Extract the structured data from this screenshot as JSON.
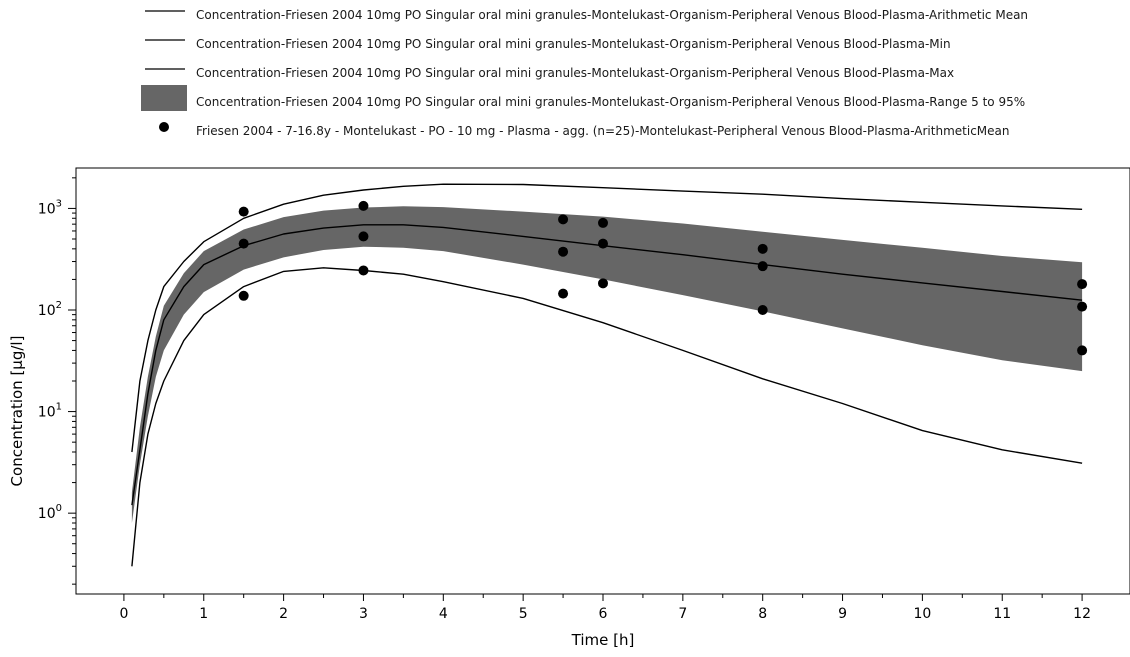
{
  "legend": [
    {
      "kind": "line",
      "label": "Concentration-Friesen 2004 10mg PO Singular oral mini granules-Montelukast-Organism-Peripheral Venous Blood-Plasma-Arithmetic Mean"
    },
    {
      "kind": "line",
      "label": "Concentration-Friesen 2004 10mg PO Singular oral mini granules-Montelukast-Organism-Peripheral Venous Blood-Plasma-Min"
    },
    {
      "kind": "line",
      "label": "Concentration-Friesen 2004 10mg PO Singular oral mini granules-Montelukast-Organism-Peripheral Venous Blood-Plasma-Max"
    },
    {
      "kind": "band",
      "label": "Concentration-Friesen 2004 10mg PO Singular oral mini granules-Montelukast-Organism-Peripheral Venous Blood-Plasma-Range 5 to 95%"
    },
    {
      "kind": "marker",
      "label": "Friesen 2004 - 7-16.8y - Montelukast - PO - 10 mg - Plasma - agg. (n=25)-Montelukast-Peripheral Venous Blood-Plasma-ArithmeticMean"
    }
  ],
  "chart_data": {
    "type": "line",
    "xlabel": "Time [h]",
    "ylabel": "Concentration [µg/l]",
    "xlim": [
      -0.6,
      12.6
    ],
    "ylim": [
      0.16,
      2500
    ],
    "yscale": "log",
    "xticks": [
      0,
      1,
      2,
      3,
      4,
      5,
      6,
      7,
      8,
      9,
      10,
      11,
      12
    ],
    "ytick_labels": [
      {
        "base": "10",
        "exp": "0",
        "value": 1
      },
      {
        "base": "10",
        "exp": "1",
        "value": 10
      },
      {
        "base": "10",
        "exp": "2",
        "value": 100
      },
      {
        "base": "10",
        "exp": "3",
        "value": 1000
      }
    ],
    "colors": {
      "lines": "#000000",
      "band": "#666666",
      "markers": "#000000"
    },
    "series": [
      {
        "name": "Concentration-Friesen 2004 10mg PO Singular oral mini granules-Montelukast-Organism-Peripheral Venous Blood-Plasma-Arithmetic Mean",
        "kind": "line",
        "x": [
          0.1,
          0.2,
          0.3,
          0.4,
          0.5,
          0.75,
          1,
          1.5,
          2,
          2.5,
          3,
          3.5,
          4,
          5,
          6,
          7,
          8,
          9,
          10,
          11,
          12
        ],
        "y": [
          1.2,
          4.2,
          15,
          40,
          80,
          170,
          280,
          430,
          560,
          640,
          690,
          690,
          650,
          530,
          430,
          350,
          280,
          225,
          185,
          152,
          125
        ]
      },
      {
        "name": "Concentration-Friesen 2004 10mg PO Singular oral mini granules-Montelukast-Organism-Peripheral Venous Blood-Plasma-Min",
        "kind": "line",
        "x": [
          0.1,
          0.2,
          0.3,
          0.4,
          0.5,
          0.75,
          1,
          1.5,
          2,
          2.5,
          3,
          3.5,
          4,
          5,
          6,
          7,
          8,
          9,
          10,
          11,
          12
        ],
        "y": [
          0.3,
          2.0,
          6,
          12,
          20,
          50,
          90,
          170,
          240,
          260,
          245,
          225,
          190,
          130,
          75,
          40,
          21,
          12,
          6.5,
          4.2,
          3.1
        ]
      },
      {
        "name": "Concentration-Friesen 2004 10mg PO Singular oral mini granules-Montelukast-Organism-Peripheral Venous Blood-Plasma-Max",
        "kind": "line",
        "x": [
          0.1,
          0.2,
          0.3,
          0.4,
          0.5,
          0.75,
          1,
          1.5,
          2,
          2.5,
          3,
          3.5,
          4,
          5,
          6,
          7,
          8,
          9,
          10,
          11,
          12
        ],
        "y": [
          4,
          20,
          50,
          100,
          170,
          300,
          470,
          800,
          1100,
          1350,
          1520,
          1650,
          1730,
          1720,
          1600,
          1480,
          1380,
          1250,
          1150,
          1060,
          980
        ]
      },
      {
        "name": "Concentration-Friesen 2004 10mg PO Singular oral mini granules-Montelukast-Organism-Peripheral Venous Blood-Plasma-Range 5 to 95%",
        "kind": "band",
        "x": [
          0.1,
          0.2,
          0.3,
          0.4,
          0.5,
          0.75,
          1,
          1.5,
          2,
          2.5,
          3,
          3.5,
          4,
          5,
          6,
          7,
          8,
          9,
          10,
          11,
          12
        ],
        "lower": [
          0.8,
          3,
          9,
          22,
          40,
          90,
          150,
          250,
          330,
          390,
          420,
          410,
          380,
          280,
          200,
          140,
          97,
          66,
          45,
          32,
          25
        ],
        "upper": [
          1.6,
          7,
          22,
          55,
          110,
          230,
          380,
          620,
          820,
          950,
          1020,
          1050,
          1030,
          930,
          830,
          710,
          590,
          490,
          410,
          340,
          295
        ]
      },
      {
        "name": "Friesen 2004 - 7-16.8y - Montelukast - PO - 10 mg - Plasma - agg. (n=25)-Montelukast-Peripheral Venous Blood-Plasma-ArithmeticMean",
        "kind": "scatter",
        "x": [
          1.5,
          1.5,
          1.5,
          3,
          3,
          3,
          5.5,
          5.5,
          5.5,
          6,
          6,
          6,
          8,
          8,
          8,
          12,
          12,
          12
        ],
        "y": [
          930,
          450,
          138,
          1060,
          530,
          245,
          780,
          375,
          145,
          720,
          450,
          183,
          400,
          270,
          100,
          180,
          108,
          40
        ]
      }
    ]
  }
}
